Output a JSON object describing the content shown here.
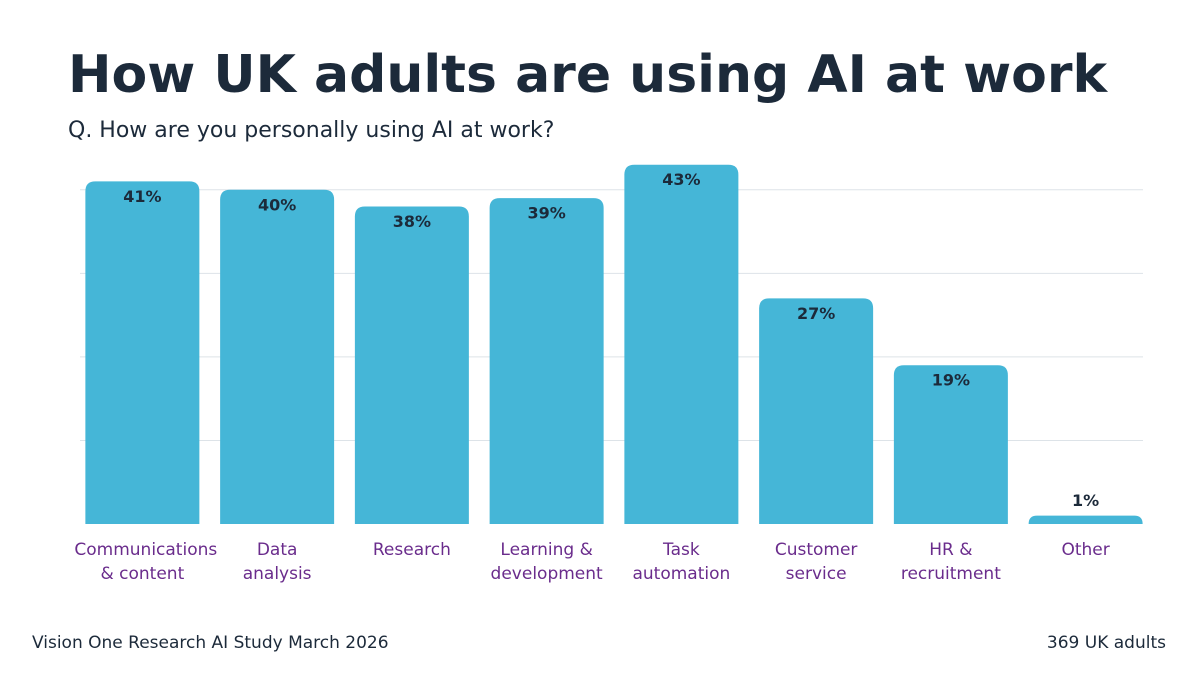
{
  "chart_data": {
    "type": "bar",
    "title": "How UK adults are using AI at work",
    "subtitle": "Q. How are you personally using AI at work?",
    "categories": [
      "Communications\n& content",
      "Data\nanalysis",
      "Research",
      "Learning &\ndevelopment",
      "Task\nautomation",
      "Customer\nservice",
      "HR &\nrecruitment",
      "Other"
    ],
    "values": [
      41,
      40,
      38,
      39,
      43,
      27,
      19,
      1
    ],
    "value_labels": [
      "41%",
      "40%",
      "38%",
      "39%",
      "43%",
      "27%",
      "19%",
      "1%"
    ],
    "color": "#45b6d7",
    "ylim": [
      0,
      45
    ],
    "yticks": [
      10,
      20,
      30,
      40
    ],
    "grid": true,
    "source": "Vision One Research AI Study March 2026",
    "sample": "369 UK adults"
  }
}
